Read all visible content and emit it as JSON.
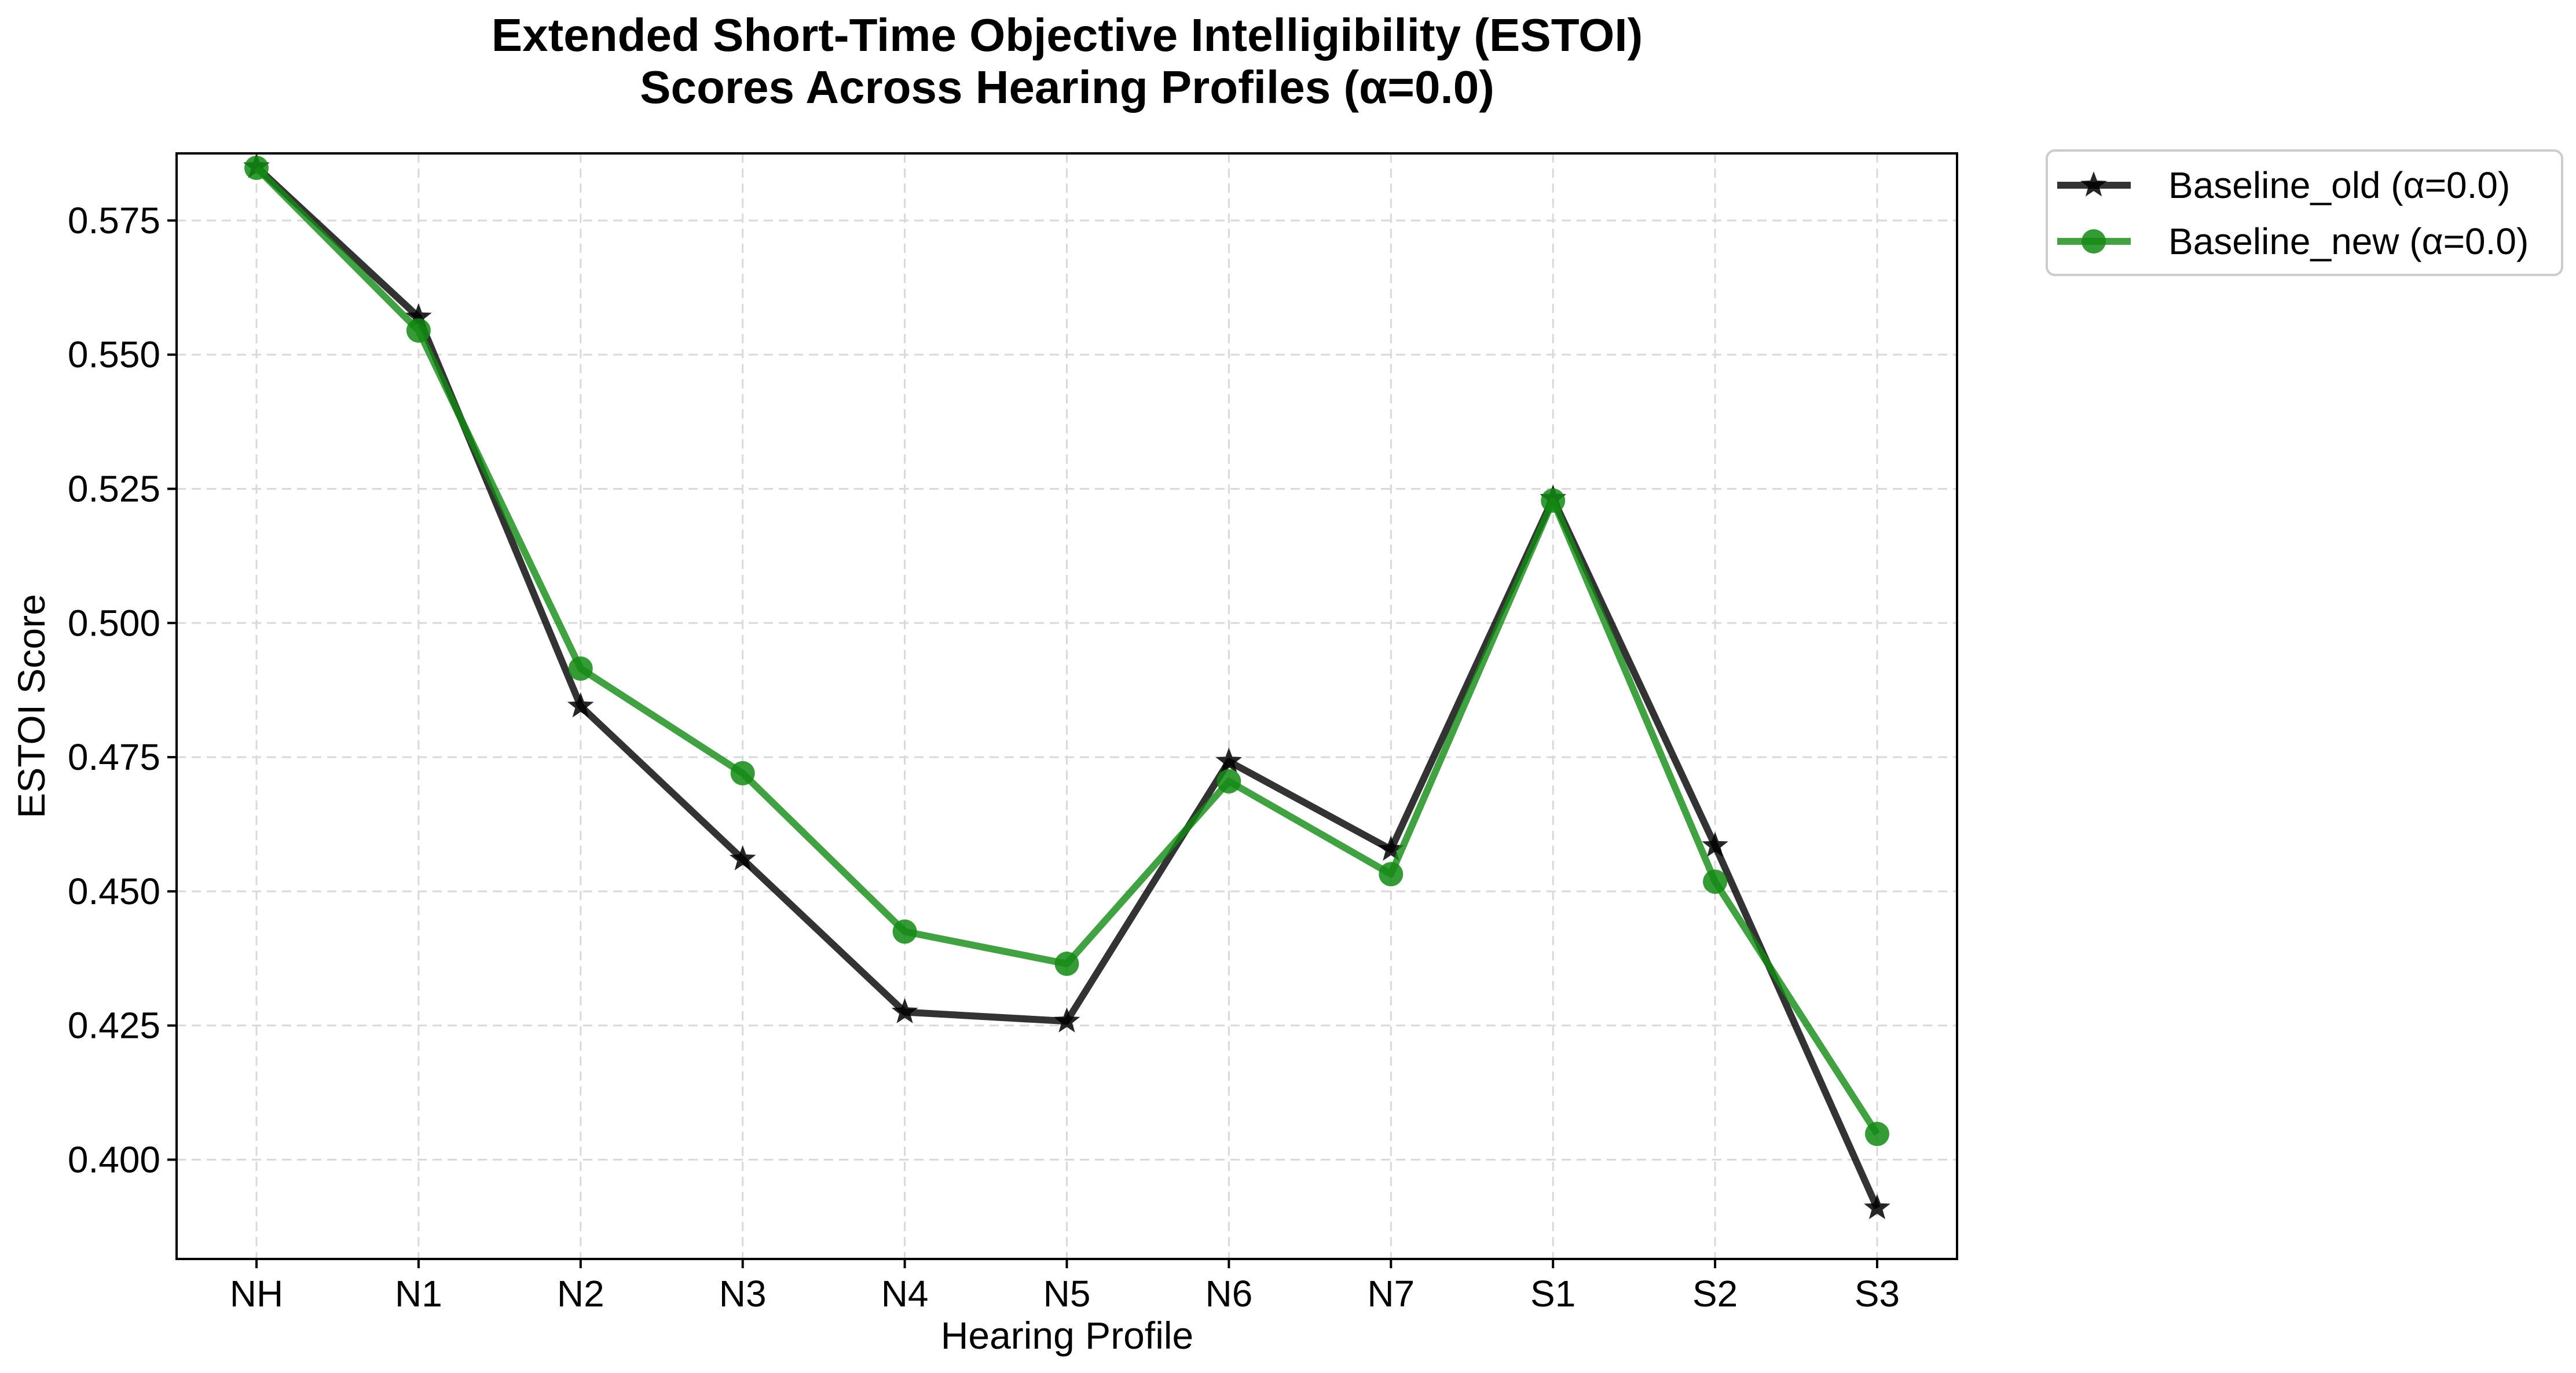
{
  "chart_data": {
    "type": "line",
    "title_lines": [
      "Extended Short-Time Objective Intelligibility (ESTOI)",
      "Scores Across Hearing Profiles (α=0.0)"
    ],
    "xlabel": "Hearing Profile",
    "ylabel": "ESTOI Score",
    "categories": [
      "NH",
      "N1",
      "N2",
      "N3",
      "N4",
      "N5",
      "N6",
      "N7",
      "S1",
      "S2",
      "S3"
    ],
    "ylim": [
      0.3815,
      0.5875
    ],
    "yticks": [
      0.4,
      0.425,
      0.45,
      0.475,
      0.5,
      0.525,
      0.55,
      0.575
    ],
    "ytick_labels": [
      "0.400",
      "0.425",
      "0.450",
      "0.475",
      "0.500",
      "0.525",
      "0.550",
      "0.575"
    ],
    "grid": true,
    "legend_position": "outside-top-right",
    "series": [
      {
        "name": "Baseline_old (α=0.0)",
        "color": "#000000",
        "marker": "star",
        "values": [
          0.585,
          0.557,
          0.4845,
          0.456,
          0.4275,
          0.4258,
          0.4742,
          0.4578,
          0.5232,
          0.4585,
          0.391
        ]
      },
      {
        "name": "Baseline_new (α=0.0)",
        "color": "#138a13",
        "marker": "circle",
        "values": [
          0.5848,
          0.5545,
          0.4915,
          0.472,
          0.4425,
          0.4365,
          0.4705,
          0.4532,
          0.5228,
          0.4518,
          0.4048
        ]
      }
    ]
  }
}
